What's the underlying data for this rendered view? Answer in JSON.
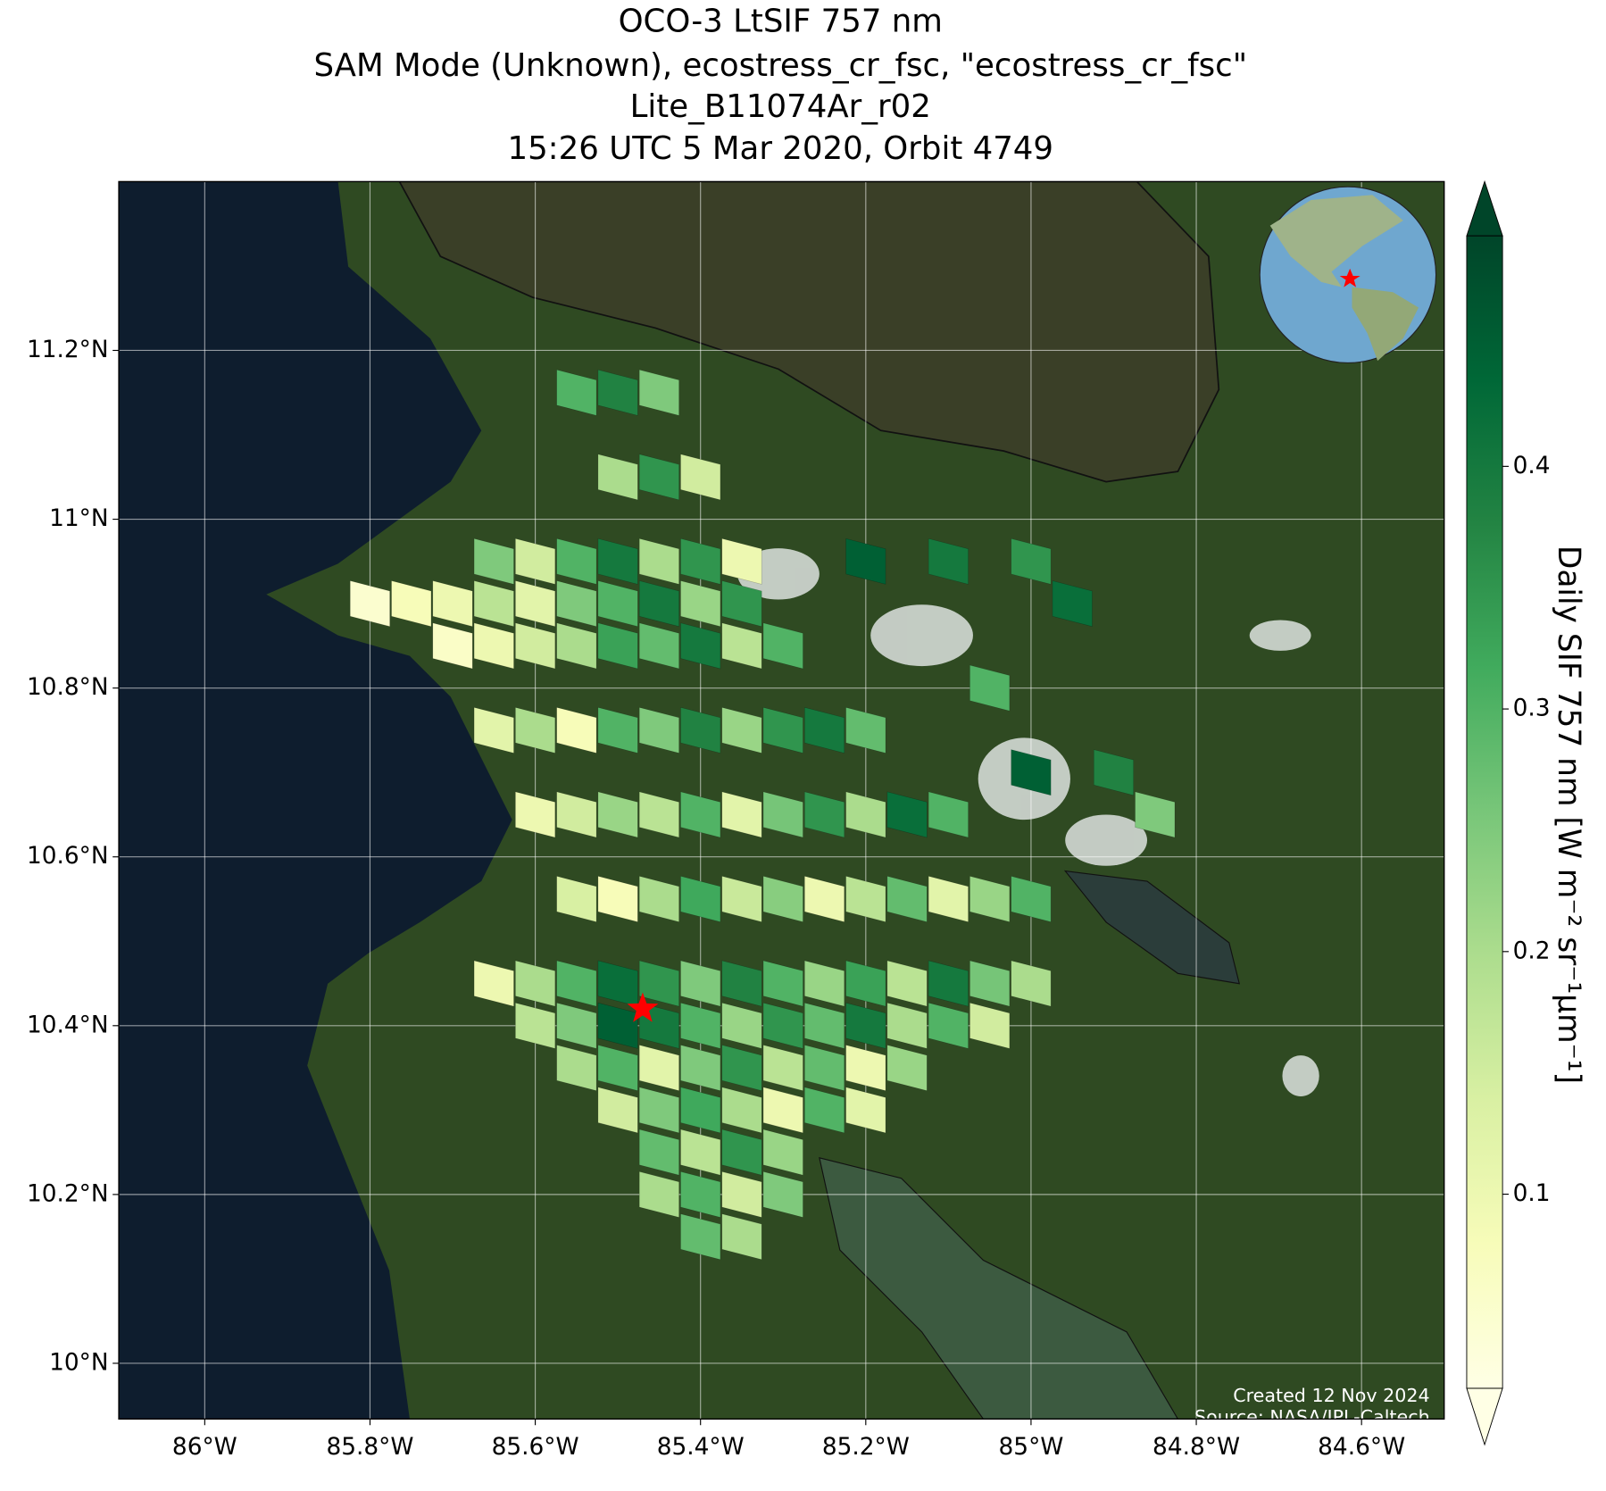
{
  "chart_data": {
    "type": "map",
    "title": [
      "OCO-3 LtSIF 757 nm",
      "SAM Mode (Unknown), ecostress_cr_fsc, \"ecostress_cr_fsc\"",
      "Lite_B11074Ar_r02",
      "15:26 UTC 5 Mar 2020, Orbit 4749"
    ],
    "xlim": [
      -86.104,
      -84.5
    ],
    "ylim": [
      9.934,
      11.4
    ],
    "xticks": [
      {
        "value": -86,
        "label": "86°W"
      },
      {
        "value": -85.8,
        "label": "85.8°W"
      },
      {
        "value": -85.6,
        "label": "85.6°W"
      },
      {
        "value": -85.4,
        "label": "85.4°W"
      },
      {
        "value": -85.2,
        "label": "85.2°W"
      },
      {
        "value": -85,
        "label": "85°W"
      },
      {
        "value": -84.8,
        "label": "84.8°W"
      },
      {
        "value": -84.6,
        "label": "84.6°W"
      }
    ],
    "yticks": [
      {
        "value": 10,
        "label": "10°N"
      },
      {
        "value": 10.2,
        "label": "10.2°N"
      },
      {
        "value": 10.4,
        "label": "10.4°N"
      },
      {
        "value": 10.6,
        "label": "10.6°N"
      },
      {
        "value": 10.8,
        "label": "10.8°N"
      },
      {
        "value": 11,
        "label": "11°N"
      },
      {
        "value": 11.2,
        "label": "11.2°N"
      }
    ],
    "grid": true,
    "lon": [
      -85.55,
      -85.5,
      -85.45,
      -85.5,
      -85.45,
      -85.4,
      -85.65,
      -85.6,
      -85.55,
      -85.5,
      -85.45,
      -85.4,
      -85.35,
      -85.8,
      -85.75,
      -85.7,
      -85.65,
      -85.6,
      -85.55,
      -85.5,
      -85.45,
      -85.4,
      -85.35,
      -85.7,
      -85.65,
      -85.6,
      -85.55,
      -85.5,
      -85.45,
      -85.4,
      -85.35,
      -85.3,
      -85.65,
      -85.6,
      -85.55,
      -85.5,
      -85.45,
      -85.4,
      -85.35,
      -85.3,
      -85.25,
      -85.2,
      -85.6,
      -85.55,
      -85.5,
      -85.45,
      -85.4,
      -85.35,
      -85.3,
      -85.25,
      -85.2,
      -85.15,
      -85.1,
      -85.55,
      -85.5,
      -85.45,
      -85.4,
      -85.35,
      -85.3,
      -85.25,
      -85.2,
      -85.15,
      -85.1,
      -85.05,
      -85.0,
      -85.65,
      -85.6,
      -85.55,
      -85.5,
      -85.45,
      -85.4,
      -85.35,
      -85.3,
      -85.25,
      -85.2,
      -85.15,
      -85.1,
      -85.05,
      -85.0,
      -85.6,
      -85.55,
      -85.5,
      -85.45,
      -85.4,
      -85.35,
      -85.3,
      -85.25,
      -85.2,
      -85.15,
      -85.1,
      -85.05,
      -85.55,
      -85.5,
      -85.45,
      -85.4,
      -85.35,
      -85.3,
      -85.25,
      -85.2,
      -85.15,
      -85.5,
      -85.45,
      -85.4,
      -85.35,
      -85.3,
      -85.25,
      -85.2,
      -85.45,
      -85.4,
      -85.35,
      -85.3,
      -85.45,
      -85.4,
      -85.35,
      -85.3,
      -85.4,
      -85.35,
      -85.2,
      -85.1,
      -85.0,
      -84.95,
      -85.05,
      -85.0,
      -84.9,
      -84.85
    ],
    "lat": [
      11.15,
      11.15,
      11.15,
      11.05,
      11.05,
      11.05,
      10.95,
      10.95,
      10.95,
      10.95,
      10.95,
      10.95,
      10.95,
      10.9,
      10.9,
      10.9,
      10.9,
      10.9,
      10.9,
      10.9,
      10.9,
      10.9,
      10.9,
      10.85,
      10.85,
      10.85,
      10.85,
      10.85,
      10.85,
      10.85,
      10.85,
      10.85,
      10.75,
      10.75,
      10.75,
      10.75,
      10.75,
      10.75,
      10.75,
      10.75,
      10.75,
      10.75,
      10.65,
      10.65,
      10.65,
      10.65,
      10.65,
      10.65,
      10.65,
      10.65,
      10.65,
      10.65,
      10.65,
      10.55,
      10.55,
      10.55,
      10.55,
      10.55,
      10.55,
      10.55,
      10.55,
      10.55,
      10.55,
      10.55,
      10.55,
      10.45,
      10.45,
      10.45,
      10.45,
      10.45,
      10.45,
      10.45,
      10.45,
      10.45,
      10.45,
      10.45,
      10.45,
      10.45,
      10.45,
      10.4,
      10.4,
      10.4,
      10.4,
      10.4,
      10.4,
      10.4,
      10.4,
      10.4,
      10.4,
      10.4,
      10.4,
      10.35,
      10.35,
      10.35,
      10.35,
      10.35,
      10.35,
      10.35,
      10.35,
      10.35,
      10.3,
      10.3,
      10.3,
      10.3,
      10.3,
      10.3,
      10.3,
      10.25,
      10.25,
      10.25,
      10.25,
      10.2,
      10.2,
      10.2,
      10.2,
      10.15,
      10.15,
      10.95,
      10.95,
      10.95,
      10.9,
      10.8,
      10.7,
      10.7,
      10.65
    ],
    "values": [
      0.3,
      0.38,
      0.25,
      0.2,
      0.35,
      0.15,
      0.25,
      0.15,
      0.3,
      0.4,
      0.2,
      0.35,
      0.1,
      0.05,
      0.08,
      0.1,
      0.18,
      0.12,
      0.25,
      0.3,
      0.4,
      0.22,
      0.35,
      0.06,
      0.1,
      0.15,
      0.2,
      0.33,
      0.28,
      0.4,
      0.18,
      0.3,
      0.12,
      0.2,
      0.08,
      0.3,
      0.25,
      0.38,
      0.22,
      0.35,
      0.4,
      0.28,
      0.1,
      0.15,
      0.22,
      0.18,
      0.3,
      0.12,
      0.26,
      0.35,
      0.2,
      0.42,
      0.3,
      0.14,
      0.08,
      0.2,
      0.32,
      0.16,
      0.24,
      0.1,
      0.18,
      0.28,
      0.12,
      0.22,
      0.3,
      0.1,
      0.2,
      0.3,
      0.42,
      0.35,
      0.25,
      0.38,
      0.3,
      0.22,
      0.33,
      0.18,
      0.4,
      0.26,
      0.2,
      0.18,
      0.25,
      0.45,
      0.4,
      0.3,
      0.22,
      0.35,
      0.28,
      0.4,
      0.2,
      0.3,
      0.15,
      0.2,
      0.3,
      0.12,
      0.25,
      0.35,
      0.18,
      0.28,
      0.1,
      0.22,
      0.15,
      0.25,
      0.32,
      0.2,
      0.1,
      0.3,
      0.12,
      0.28,
      0.18,
      0.35,
      0.22,
      0.2,
      0.3,
      0.15,
      0.25,
      0.28,
      0.2,
      0.45,
      0.4,
      0.35,
      0.42,
      0.3,
      0.45,
      0.38,
      0.25
    ],
    "target": {
      "lon": -85.47,
      "lat": 10.42,
      "color": "#ff0000"
    },
    "colormap": [
      "#ffffe5",
      "#f7fcb9",
      "#d9f0a3",
      "#addd8e",
      "#78c679",
      "#41ab5d",
      "#238443",
      "#006837",
      "#004529"
    ],
    "clim": [
      0.02,
      0.495
    ],
    "colorbar_ticks": [
      0.1,
      0.2,
      0.3,
      0.4
    ],
    "colorbar_label": "Daily SIF 757 nm [W m⁻² sr⁻¹μm⁻¹]",
    "credits": [
      "Created 12 Nov 2024",
      "Source: NASA/JPL-Caltech"
    ]
  }
}
